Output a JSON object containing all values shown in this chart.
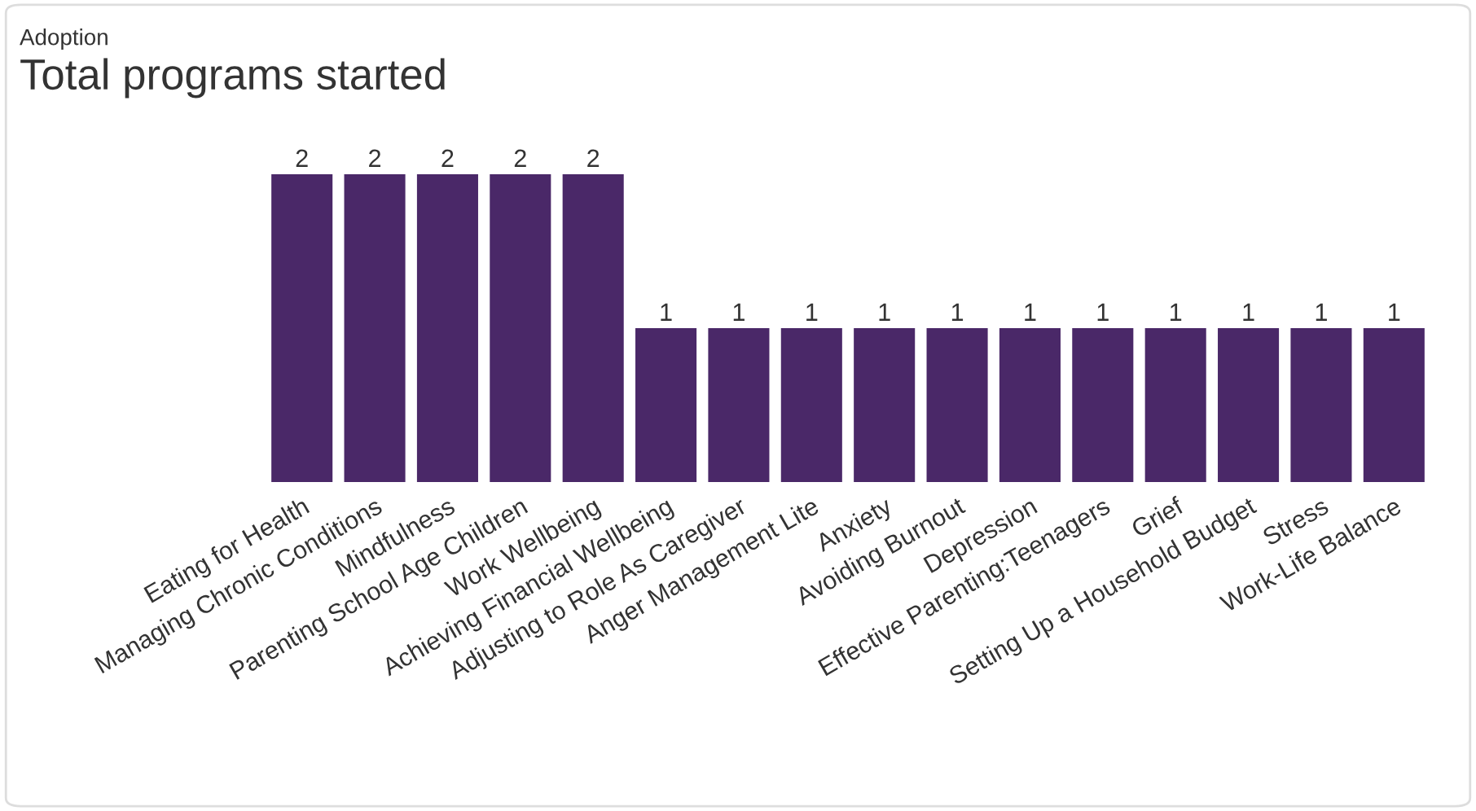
{
  "chart_data": {
    "type": "bar",
    "subtitle": "Adoption",
    "title": "Total programs started",
    "categories": [
      "Eating for Health",
      "Managing Chronic Conditions",
      "Mindfulness",
      "Parenting School Age Children",
      "Work Wellbeing",
      "Achieving Financial Wellbeing",
      "Adjusting to Role As Caregiver",
      "Anger Management Lite",
      "Anxiety",
      "Avoiding Burnout",
      "Depression",
      "Effective Parenting:Teenagers",
      "Grief",
      "Setting Up a Household Budget",
      "Stress",
      "Work-Life Balance"
    ],
    "values": [
      2,
      2,
      2,
      2,
      2,
      1,
      1,
      1,
      1,
      1,
      1,
      1,
      1,
      1,
      1,
      1
    ],
    "color": "#4a2868",
    "data_labels": true
  }
}
